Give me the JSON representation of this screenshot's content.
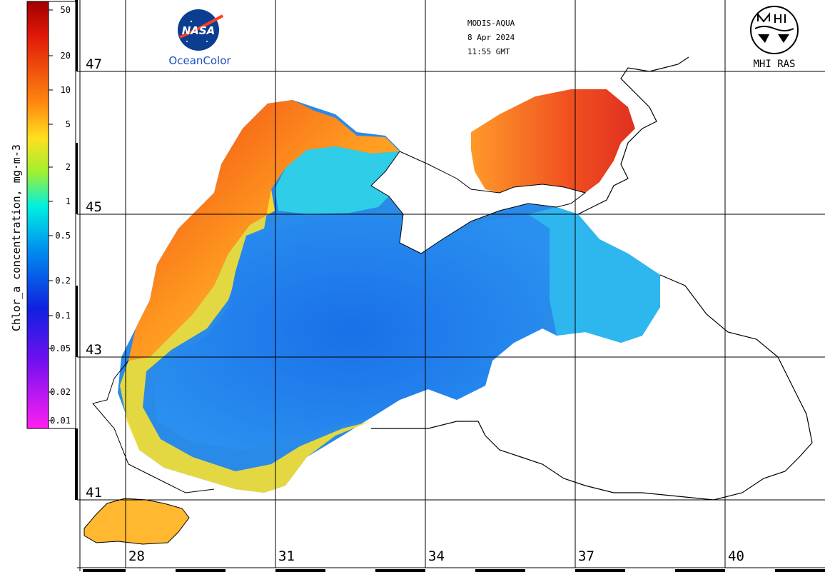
{
  "header": {
    "sensor": "MODIS-AQUA",
    "date": "8 Apr 2024",
    "time": "11:55 GMT"
  },
  "logos": {
    "nasa_text": "NASA",
    "oceancolor_text": "OceanColor",
    "mhi_text": "MHI RAS"
  },
  "colorbar": {
    "title": "Chlor_a concentration, mg·m-3",
    "ticks": [
      "50",
      "20",
      "10",
      "5",
      "2",
      "1",
      "0.5",
      "0.2",
      "0.1",
      "0.05",
      "0.02",
      "0.01"
    ],
    "colors": [
      "#b00000",
      "#e8200a",
      "#ff7a10",
      "#ffd020",
      "#b8f028",
      "#40f0a0",
      "#00e0f0",
      "#0090f0",
      "#1030e0",
      "#6a10f0",
      "#c020f0",
      "#ff40e0"
    ]
  },
  "grid": {
    "latitudes": [
      "47",
      "45",
      "43",
      "41"
    ],
    "longitudes": [
      "28",
      "31",
      "34",
      "37",
      "40"
    ]
  }
}
